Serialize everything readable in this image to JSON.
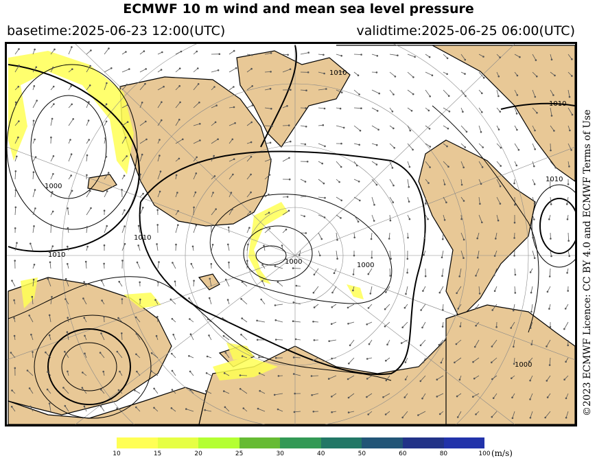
{
  "header": {
    "title": "ECMWF 10 m wind and mean sea level pressure",
    "basetime": "basetime:2025-06-23 12:00(UTC)",
    "validtime": "validtime:2025-06-25 06:00(UTC)"
  },
  "licence": "©2023 ECMWF Licence: CC BY 4.0 and ECMWF Terms of Use",
  "map": {
    "isobar_labels": [
      "1010",
      "1000",
      "1010",
      "1000",
      "1010",
      "1000",
      "1010",
      "1010",
      "1000"
    ],
    "land_color": "#e8c896",
    "coast_color": "#000000",
    "isobar_color": "#000000",
    "wind_highlight_color": "#ffff55"
  },
  "legend": {
    "unit": "(m/s)",
    "ticks": [
      "10",
      "15",
      "20",
      "25",
      "30",
      "40",
      "50",
      "60",
      "80",
      "100"
    ],
    "colors": [
      "#ffff55",
      "#e6ff44",
      "#b4ff33",
      "#66bb33",
      "#339955",
      "#227766",
      "#225577",
      "#223388",
      "#2233aa"
    ]
  }
}
